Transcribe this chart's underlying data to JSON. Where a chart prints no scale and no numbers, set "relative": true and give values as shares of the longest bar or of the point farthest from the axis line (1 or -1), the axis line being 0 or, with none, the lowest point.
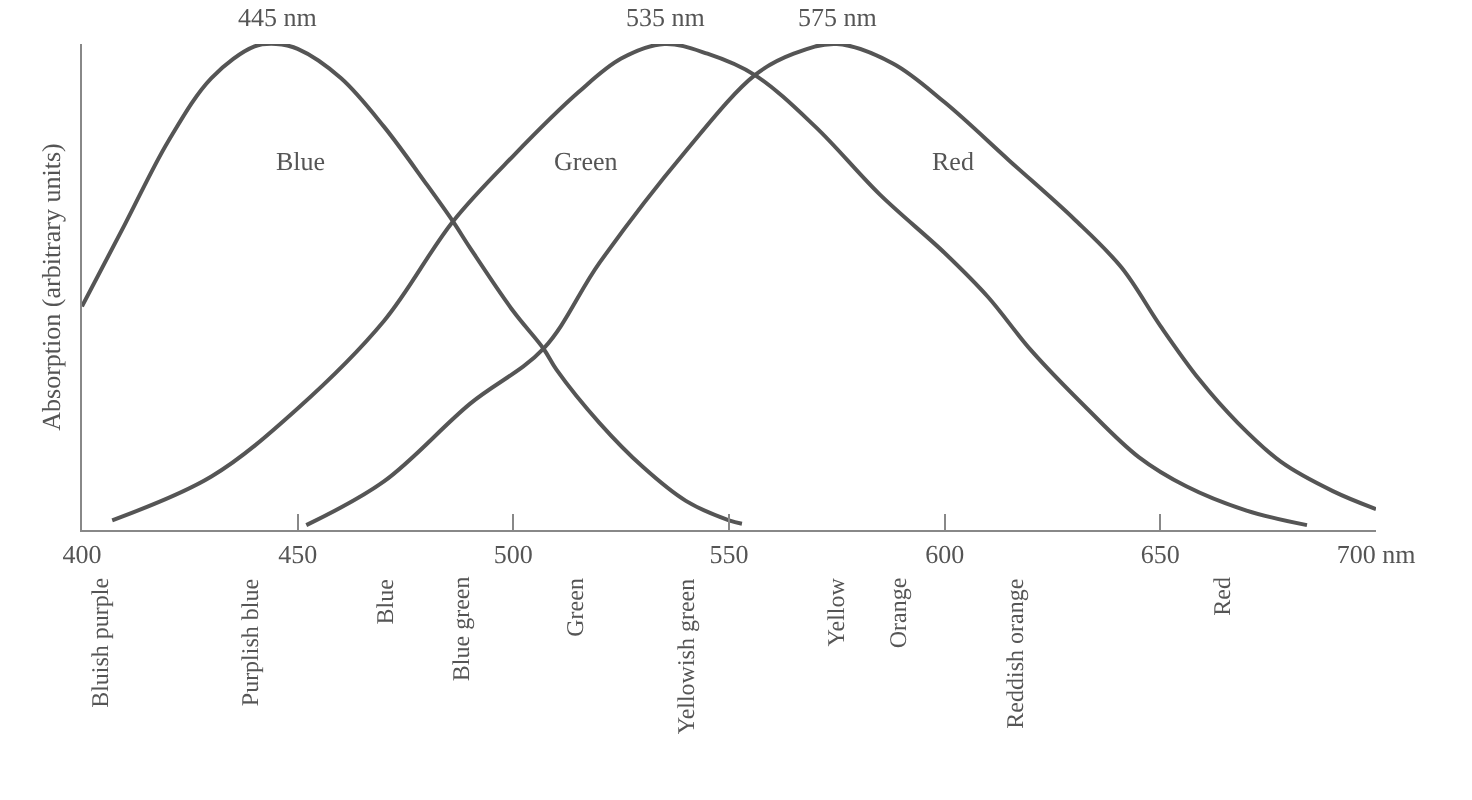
{
  "chart_data": {
    "type": "line",
    "relative": true,
    "ylabel": "Absorption (arbitrary units)",
    "xlim": [
      400,
      700
    ],
    "xticks": [
      400,
      450,
      500,
      550,
      600,
      650,
      {
        "value": 700,
        "label": "700 nm"
      }
    ],
    "line_style": "solid",
    "series": [
      {
        "name": "Blue",
        "color": "#555555",
        "x": [
          400,
          410,
          420,
          430,
          440,
          445,
          450,
          460,
          470,
          480,
          486,
          490,
          500,
          507,
          510,
          520,
          530,
          540,
          550,
          553
        ],
        "values": [
          0.46,
          0.63,
          0.8,
          0.93,
          0.995,
          1,
          0.99,
          0.93,
          0.83,
          0.71,
          0.635,
          0.58,
          0.45,
          0.373,
          0.33,
          0.22,
          0.13,
          0.06,
          0.02,
          0.013
        ]
      },
      {
        "name": "Green",
        "color": "#555555",
        "x": [
          407,
          430,
          450,
          470,
          486,
          500,
          515,
          525,
          535,
          545,
          556,
          570,
          585,
          600,
          610,
          620,
          633,
          645,
          656,
          670,
          684
        ],
        "values": [
          0.02,
          0.11,
          0.25,
          0.43,
          0.635,
          0.77,
          0.9,
          0.97,
          1,
          0.98,
          0.936,
          0.83,
          0.69,
          0.57,
          0.48,
          0.37,
          0.25,
          0.15,
          0.09,
          0.04,
          0.01
        ]
      },
      {
        "name": "Red",
        "color": "#555555",
        "x": [
          452,
          470,
          490,
          507,
          520,
          540,
          556,
          565,
          575,
          588,
          600,
          615,
          630,
          641,
          650,
          659,
          668,
          678,
          690,
          700
        ],
        "values": [
          0.01,
          0.1,
          0.26,
          0.373,
          0.55,
          0.78,
          0.936,
          0.98,
          1,
          0.96,
          0.88,
          0.76,
          0.64,
          0.54,
          0.42,
          0.31,
          0.22,
          0.14,
          0.08,
          0.043
        ]
      }
    ],
    "annotations": [
      {
        "text": "445 nm",
        "x": 445,
        "y": 1
      },
      {
        "text": "535 nm",
        "x": 535,
        "y": 1
      },
      {
        "text": "575 nm",
        "x": 575,
        "y": 1
      },
      "Bluish purple",
      "Purplish blue",
      "Blue",
      "Blue green",
      "Green",
      "Yellowish green",
      "Yellow",
      "Orange",
      "Reddish orange",
      "Red"
    ]
  }
}
